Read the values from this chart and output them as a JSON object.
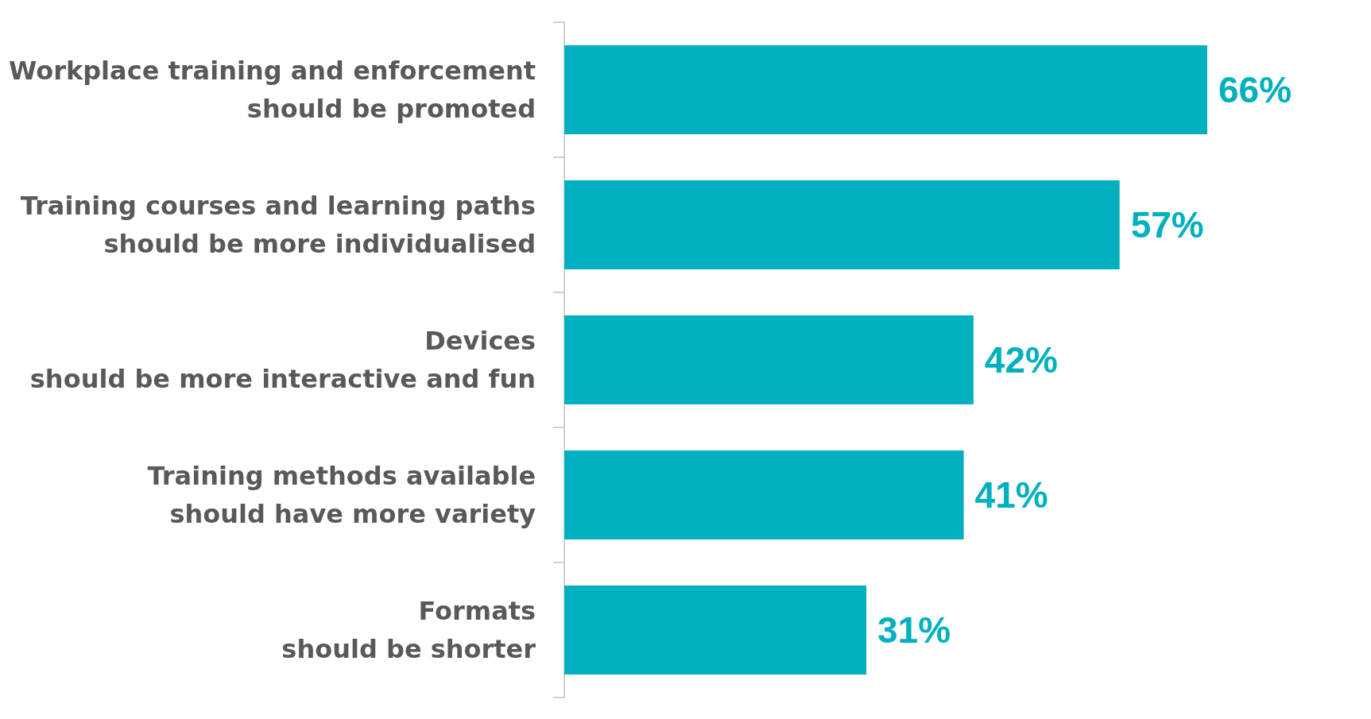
{
  "chart_data": {
    "type": "bar",
    "orientation": "horizontal",
    "categories": [
      "Workplace training and enforcement\nshould be promoted",
      "Training courses and learning paths\nshould be more individualised",
      "Devices\nshould be more interactive and fun",
      "Training methods available\nshould have more variety",
      "Formats\nshould be shorter"
    ],
    "values": [
      66,
      57,
      42,
      41,
      31
    ],
    "value_labels": [
      "66%",
      "57%",
      "42%",
      "41%",
      "31%"
    ],
    "color": "#00b0be",
    "tick_labels": "y"
  }
}
